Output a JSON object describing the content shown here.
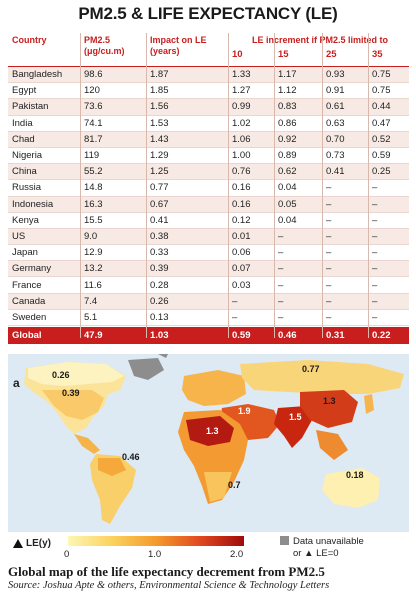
{
  "title": "PM2.5 & LIFE EXPECTANCY (LE)",
  "table": {
    "headers": {
      "country": "Country",
      "pm25_line1": "PM2.5",
      "pm25_line2": "(μg/cu.m)",
      "impact_line1": "Impact on LE",
      "impact_line2": "(years)",
      "increment": "LE increment if PM2.5 limited to",
      "limits": [
        "10",
        "15",
        "25",
        "35"
      ]
    },
    "rows": [
      {
        "country": "Bangladesh",
        "pm25": "98.6",
        "impact": "1.87",
        "l10": "1.33",
        "l15": "1.17",
        "l25": "0.93",
        "l35": "0.75"
      },
      {
        "country": "Egypt",
        "pm25": "120",
        "impact": "1.85",
        "l10": "1.27",
        "l15": "1.12",
        "l25": "0.91",
        "l35": "0.75"
      },
      {
        "country": "Pakistan",
        "pm25": "73.6",
        "impact": "1.56",
        "l10": "0.99",
        "l15": "0.83",
        "l25": "0.61",
        "l35": "0.44"
      },
      {
        "country": "India",
        "pm25": "74.1",
        "impact": "1.53",
        "l10": "1.02",
        "l15": "0.86",
        "l25": "0.63",
        "l35": "0.47"
      },
      {
        "country": "Chad",
        "pm25": "81.7",
        "impact": "1.43",
        "l10": "1.06",
        "l15": "0.92",
        "l25": "0.70",
        "l35": "0.52"
      },
      {
        "country": "Nigeria",
        "pm25": "119",
        "impact": "1.29",
        "l10": "1.00",
        "l15": "0.89",
        "l25": "0.73",
        "l35": "0.59"
      },
      {
        "country": "China",
        "pm25": "55.2",
        "impact": "1.25",
        "l10": "0.76",
        "l15": "0.62",
        "l25": "0.41",
        "l35": "0.25"
      },
      {
        "country": "Russia",
        "pm25": "14.8",
        "impact": "0.77",
        "l10": "0.16",
        "l15": "0.04",
        "l25": "–",
        "l35": "–"
      },
      {
        "country": "Indonesia",
        "pm25": "16.3",
        "impact": "0.67",
        "l10": "0.16",
        "l15": "0.05",
        "l25": "–",
        "l35": "–"
      },
      {
        "country": "Kenya",
        "pm25": "15.5",
        "impact": "0.41",
        "l10": "0.12",
        "l15": "0.04",
        "l25": "–",
        "l35": "–"
      },
      {
        "country": "US",
        "pm25": "9.0",
        "impact": "0.38",
        "l10": "0.01",
        "l15": "–",
        "l25": "–",
        "l35": "–"
      },
      {
        "country": "Japan",
        "pm25": "12.9",
        "impact": "0.33",
        "l10": "0.06",
        "l15": "–",
        "l25": "–",
        "l35": "–"
      },
      {
        "country": "Germany",
        "pm25": "13.2",
        "impact": "0.39",
        "l10": "0.07",
        "l15": "–",
        "l25": "–",
        "l35": "–"
      },
      {
        "country": "France",
        "pm25": "11.6",
        "impact": "0.28",
        "l10": "0.03",
        "l15": "–",
        "l25": "–",
        "l35": "–"
      },
      {
        "country": "Canada",
        "pm25": "7.4",
        "impact": "0.26",
        "l10": "–",
        "l15": "–",
        "l25": "–",
        "l35": "–"
      },
      {
        "country": "Sweden",
        "pm25": "5.1",
        "impact": "0.13",
        "l10": "–",
        "l15": "–",
        "l25": "–",
        "l35": "–"
      }
    ],
    "global": {
      "country": "Global",
      "pm25": "47.9",
      "impact": "1.03",
      "l10": "0.59",
      "l15": "0.46",
      "l25": "0.31",
      "l35": "0.22"
    }
  },
  "map": {
    "panel_letter": "a",
    "labels": [
      "0.26",
      "0.39",
      "0.77",
      "1.3",
      "1.9",
      "1.5",
      "1.3",
      "0.46",
      "0.7",
      "0.18"
    ]
  },
  "legend": {
    "label": "LE(y)",
    "ticks": [
      "0",
      "1.0",
      "2.0"
    ],
    "unavailable_line1": "Data unavailable",
    "unavailable_line2": "or ▲ LE=0",
    "colors": {
      "low": "#fdf6b5",
      "mid": "#f49a2c",
      "high": "#9e0b0b",
      "unavailable": "#8d8d8d",
      "ocean": "#dde9f3"
    }
  },
  "caption": "Global map of the life expectancy decrement from PM2.5",
  "source": "Source: Joshua Apte & others, Environmental Science & Technology Letters"
}
